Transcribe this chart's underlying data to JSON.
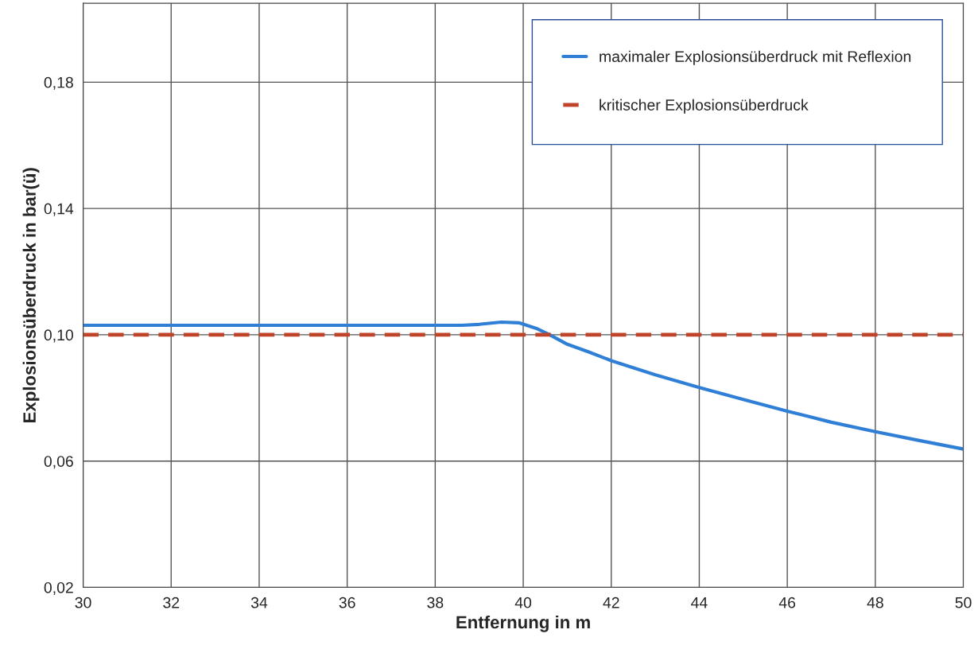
{
  "chart_data": {
    "type": "line",
    "xlabel": "Entfernung in m",
    "ylabel": "Explosionsüberdruck in bar(ü)",
    "xlim": [
      30,
      50
    ],
    "xticks": [
      30,
      32,
      34,
      36,
      38,
      40,
      42,
      44,
      46,
      48,
      50
    ],
    "ylim": [
      0.02,
      0.205
    ],
    "yticks": [
      {
        "value": 0.02,
        "label": "0,02"
      },
      {
        "value": 0.06,
        "label": "0,06"
      },
      {
        "value": 0.1,
        "label": "0,10"
      },
      {
        "value": 0.14,
        "label": "0,14"
      },
      {
        "value": 0.18,
        "label": "0,18"
      }
    ],
    "grid": true,
    "legend": "top right",
    "series": [
      {
        "name": "maximaler Explosionsüberdruck mit Reflexion",
        "color": "#2f7fd6",
        "line_style": "solid",
        "x": [
          30,
          38.6,
          39.0,
          39.5,
          39.9,
          40.3,
          40.6,
          41,
          41.5,
          42,
          43,
          44,
          45,
          46,
          47,
          48,
          49,
          50
        ],
        "values": [
          0.103,
          0.103,
          0.1033,
          0.104,
          0.1038,
          0.102,
          0.1,
          0.097,
          0.0945,
          0.0918,
          0.0873,
          0.0833,
          0.0795,
          0.0758,
          0.0723,
          0.0693,
          0.0665,
          0.0638
        ]
      },
      {
        "name": "kritischer Explosionsüberdruck",
        "color": "#c0442a",
        "line_style": "dashed",
        "x": [
          30,
          50
        ],
        "values": [
          0.1,
          0.1
        ]
      }
    ]
  }
}
